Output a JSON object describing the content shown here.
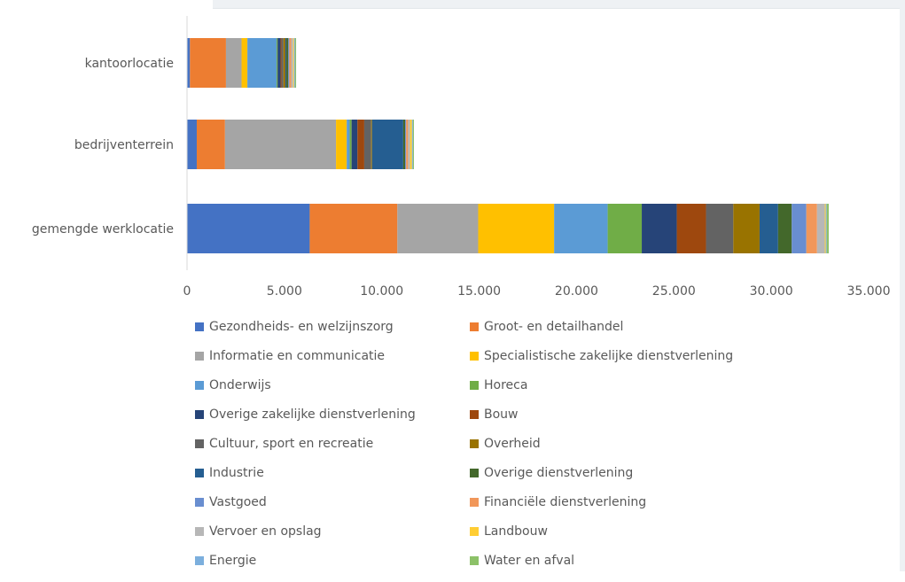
{
  "chart_data": {
    "type": "bar",
    "orientation": "horizontal",
    "stacked": true,
    "categories": [
      "gemengde werklocatie",
      "bedrijventerrein",
      "kantoorlocatie"
    ],
    "xlim": [
      0,
      35000
    ],
    "xticks": [
      0,
      5000,
      10000,
      15000,
      20000,
      25000,
      30000,
      35000
    ],
    "xtick_labels": [
      "0",
      "5.000",
      "10.000",
      "15.000",
      "20.000",
      "25.000",
      "30.000",
      "35.000"
    ],
    "grid": false,
    "legend_position": "bottom",
    "series": [
      {
        "name": "Gezondheids- en welzijnszorg",
        "color": "#4472c4",
        "values": [
          6300,
          500,
          150
        ]
      },
      {
        "name": "Groot- en detailhandel",
        "color": "#ed7d31",
        "values": [
          4500,
          1450,
          1850
        ]
      },
      {
        "name": "Informatie en communicatie",
        "color": "#a5a5a5",
        "values": [
          4150,
          5700,
          800
        ]
      },
      {
        "name": "Specialistische zakelijke dienstverlening",
        "color": "#ffc000",
        "values": [
          3900,
          550,
          300
        ]
      },
      {
        "name": "Onderwijs",
        "color": "#5b9bd5",
        "values": [
          2750,
          150,
          1500
        ]
      },
      {
        "name": "Horeca",
        "color": "#70ad47",
        "values": [
          1750,
          100,
          50
        ]
      },
      {
        "name": "Overige zakelijke dienstverlening",
        "color": "#264478",
        "values": [
          1800,
          300,
          150
        ]
      },
      {
        "name": "Bouw",
        "color": "#9e480e",
        "values": [
          1500,
          350,
          50
        ]
      },
      {
        "name": "Cultuur, sport en recreatie",
        "color": "#636363",
        "values": [
          1400,
          350,
          100
        ]
      },
      {
        "name": "Overheid",
        "color": "#997300",
        "values": [
          1350,
          50,
          100
        ]
      },
      {
        "name": "Industrie",
        "color": "#255e91",
        "values": [
          950,
          1600,
          50
        ]
      },
      {
        "name": "Overige dienstverlening",
        "color": "#43682b",
        "values": [
          700,
          100,
          100
        ]
      },
      {
        "name": "Vastgoed",
        "color": "#698ed0",
        "values": [
          750,
          50,
          50
        ]
      },
      {
        "name": "Financiële dienstverlening",
        "color": "#f1975a",
        "values": [
          550,
          100,
          100
        ]
      },
      {
        "name": "Vervoer en opslag",
        "color": "#b7b7b7",
        "values": [
          400,
          100,
          100
        ]
      },
      {
        "name": "Landbouw",
        "color": "#ffcd33",
        "values": [
          50,
          100,
          50
        ]
      },
      {
        "name": "Energie",
        "color": "#7cafdd",
        "values": [
          50,
          50,
          50
        ]
      },
      {
        "name": "Water en afval",
        "color": "#8cc168",
        "values": [
          100,
          50,
          50
        ]
      }
    ]
  }
}
